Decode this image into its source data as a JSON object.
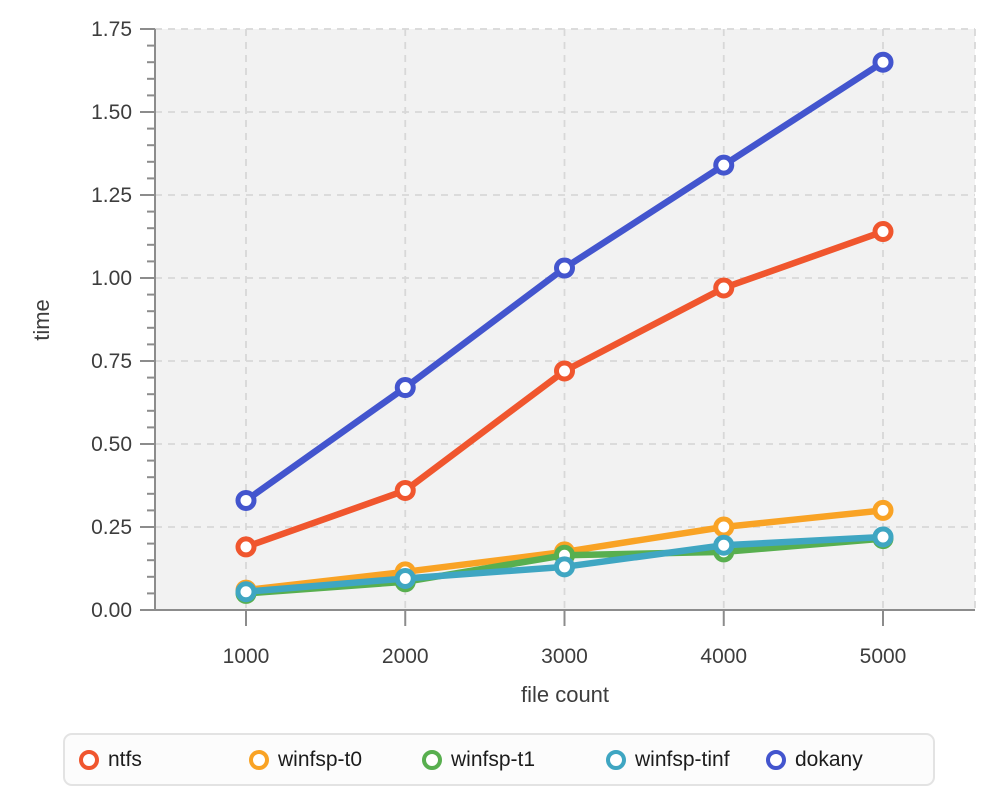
{
  "chart": {
    "y_axis": {
      "title": "time",
      "min": 0,
      "max": 1.75,
      "major_step": 0.25,
      "minor_step": 0.05,
      "tick_labels": [
        "0.00",
        "0.25",
        "0.50",
        "0.75",
        "1.00",
        "1.25",
        "1.50",
        "1.75"
      ]
    },
    "x_axis": {
      "title": "file count",
      "ticks": [
        1000,
        2000,
        3000,
        4000,
        5000
      ]
    },
    "style": {
      "panel_bg": "#f2f2f2",
      "grid_color": "#d8d8d8",
      "axis_color": "#8c8c8c",
      "tick_label_color": "#3d3d3d",
      "legend_text_color": "#1c1c1c",
      "legend_border_color": "#e3e3e3",
      "legend_bg": "#fcfcfc"
    }
  },
  "chart_data": {
    "type": "line",
    "x": [
      1000,
      2000,
      3000,
      4000,
      5000
    ],
    "series": [
      {
        "name": "ntfs",
        "color": "#f0562e",
        "values": [
          0.19,
          0.36,
          0.72,
          0.97,
          1.14
        ]
      },
      {
        "name": "winfsp-t0",
        "color": "#f9a325",
        "values": [
          0.06,
          0.115,
          0.175,
          0.25,
          0.3
        ]
      },
      {
        "name": "winfsp-t1",
        "color": "#58af4f",
        "values": [
          0.05,
          0.085,
          0.165,
          0.175,
          0.215
        ]
      },
      {
        "name": "winfsp-tinf",
        "color": "#3fa6c2",
        "values": [
          0.055,
          0.095,
          0.13,
          0.195,
          0.22
        ]
      },
      {
        "name": "dokany",
        "color": "#4355ce",
        "values": [
          0.33,
          0.67,
          1.03,
          1.34,
          1.65
        ]
      }
    ],
    "title": "",
    "xlabel": "file count",
    "ylabel": "time",
    "ylim": [
      0,
      1.75
    ],
    "grid": true,
    "grid_style": "dashed",
    "marker": "open-circle",
    "legend_position": "bottom"
  }
}
